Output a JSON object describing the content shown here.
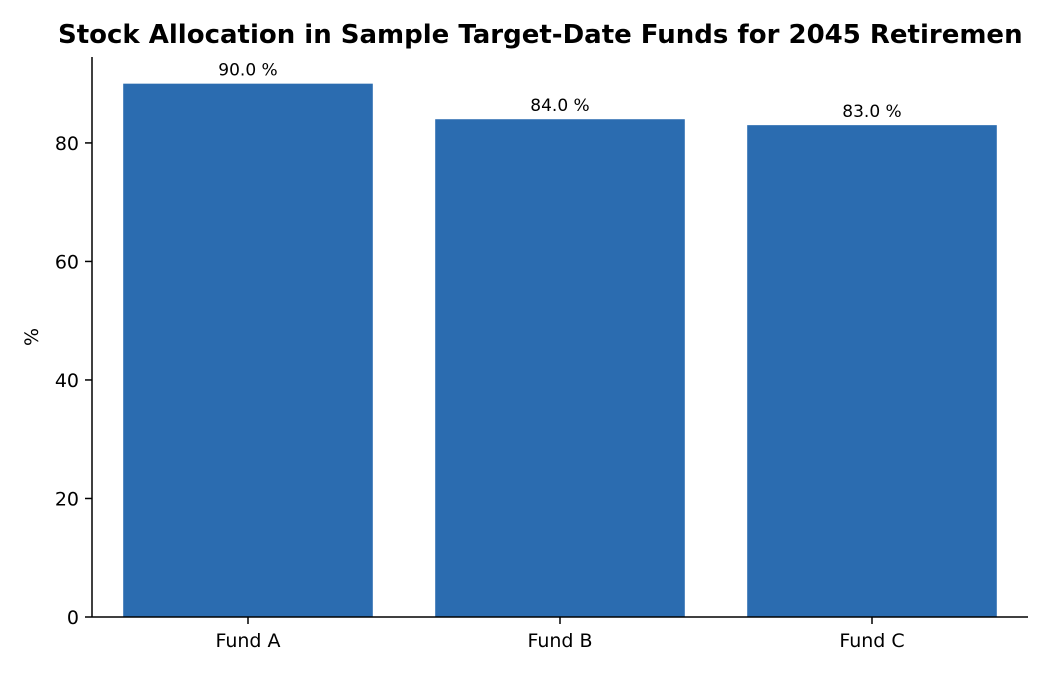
{
  "chart_data": {
    "type": "bar",
    "title": "Stock Allocation in Sample Target-Date Funds for 2045 Retiremen",
    "xlabel": "",
    "ylabel": "%",
    "categories": [
      "Fund A",
      "Fund B",
      "Fund C"
    ],
    "values": [
      90.0,
      84.0,
      83.0
    ],
    "value_labels": [
      "90.0 %",
      "84.0 %",
      "83.0 %"
    ],
    "ylim": [
      0,
      94.5
    ],
    "yticks": [
      0,
      20,
      40,
      60,
      80
    ],
    "ytick_labels": [
      "0",
      "20",
      "40",
      "60",
      "80"
    ],
    "grid": false,
    "legend": "none",
    "bar_color": "#2b6cb0"
  }
}
